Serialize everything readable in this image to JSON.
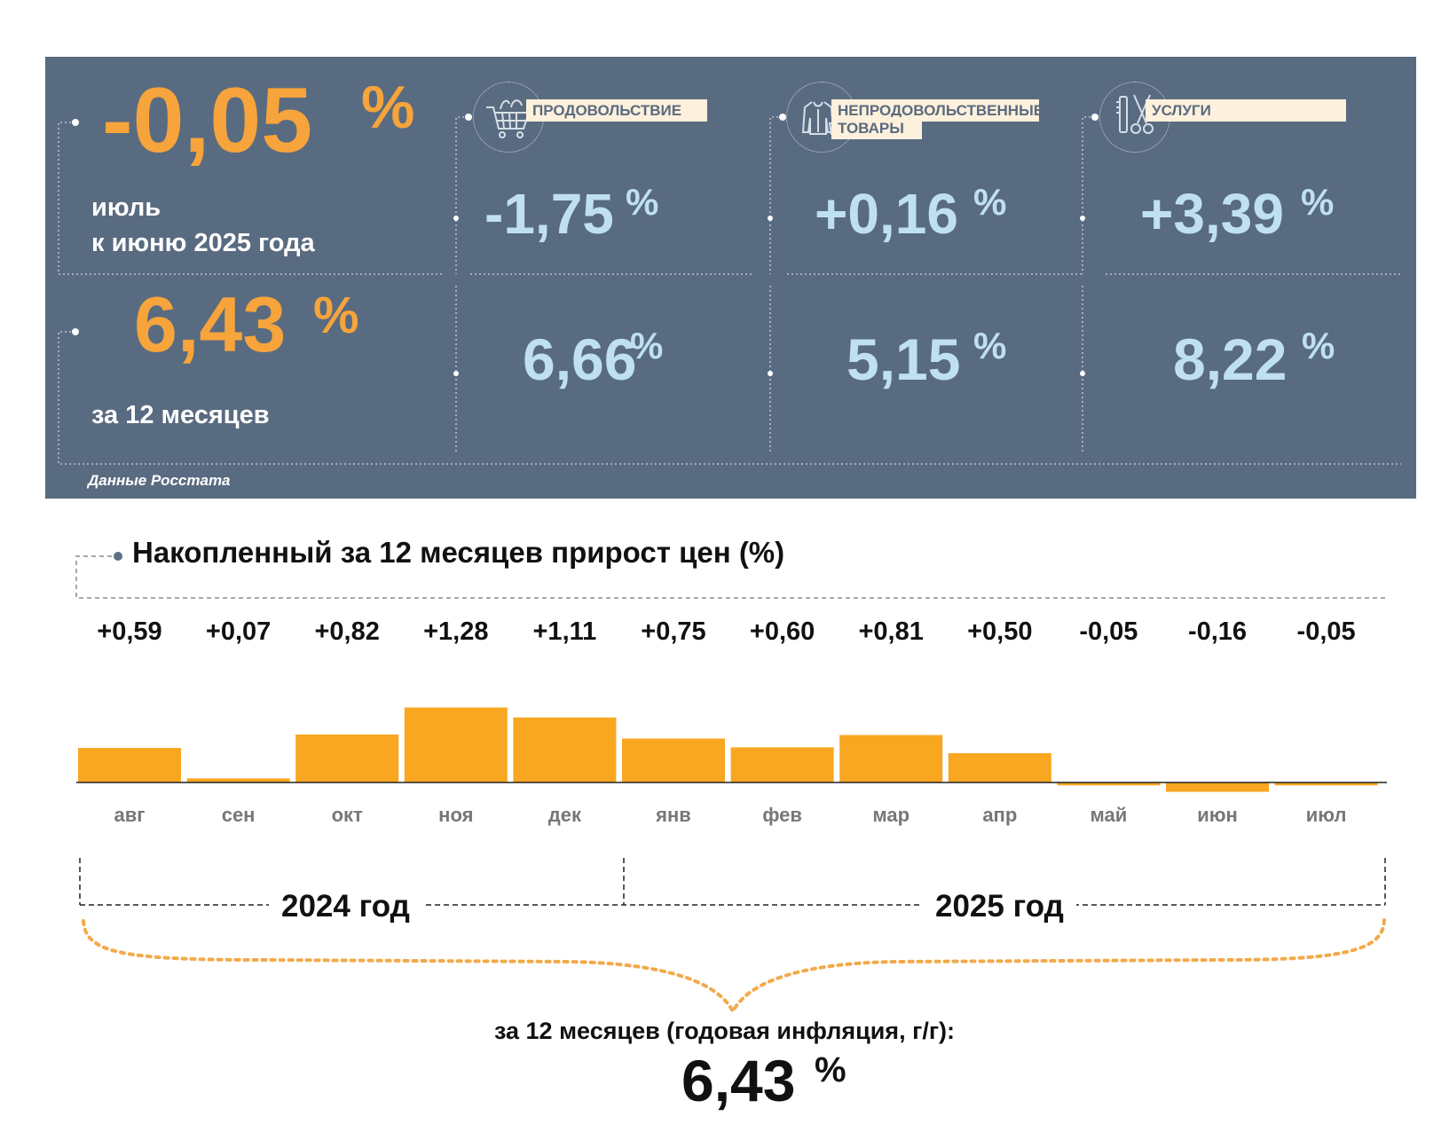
{
  "summary": {
    "month_change": {
      "value": "-0,05",
      "unit": "%",
      "period_line1": "июль",
      "period_line2": "к июню 2025 года"
    },
    "year_change": {
      "value": "6,43",
      "unit": "%",
      "period": "за 12 месяцев"
    },
    "source": "Данные Росстата",
    "categories": [
      {
        "name": "ПРОДОВОЛЬСТВИЕ",
        "icon": "shopping-cart-icon",
        "month": "-1,75",
        "year": "6,66",
        "unit": "%"
      },
      {
        "name_line1": "НЕПРОДОВОЛЬСТВЕННЫЕ",
        "name_line2": "ТОВАРЫ",
        "icon": "clothing-icon",
        "month": "+0,16",
        "year": "5,15",
        "unit": "%"
      },
      {
        "name": "УСЛУГИ",
        "icon": "scissors-comb-icon",
        "month": "+3,39",
        "year": "8,22",
        "unit": "%"
      }
    ],
    "colors": {
      "panel": "#596b80",
      "orange": "#f6a43b",
      "light_blue": "#bfe0f2",
      "tag_bg": "#fdf0dc"
    }
  },
  "chart_data": {
    "type": "bar",
    "title": "Накопленный за 12 месяцев прирост цен (%)",
    "categories": [
      "авг",
      "сен",
      "окт",
      "ноя",
      "дек",
      "янв",
      "фев",
      "мар",
      "апр",
      "май",
      "июн",
      "июл"
    ],
    "values": [
      0.59,
      0.07,
      0.82,
      1.28,
      1.11,
      0.75,
      0.6,
      0.81,
      0.5,
      -0.05,
      -0.16,
      -0.05
    ],
    "value_labels": [
      "+0,59",
      "+0,07",
      "+0,82",
      "+1,28",
      "+1,11",
      "+0,75",
      "+0,60",
      "+0,81",
      "+0,50",
      "-0,05",
      "-0,16",
      "-0,05"
    ],
    "years": [
      {
        "label": "2024 год",
        "months": 5
      },
      {
        "label": "2025 год",
        "months": 7
      }
    ],
    "bar_color": "#f9a621",
    "annual_caption": "за 12 месяцев (годовая инфляция, г/г):",
    "annual_value": "6,43",
    "annual_unit": "%"
  }
}
